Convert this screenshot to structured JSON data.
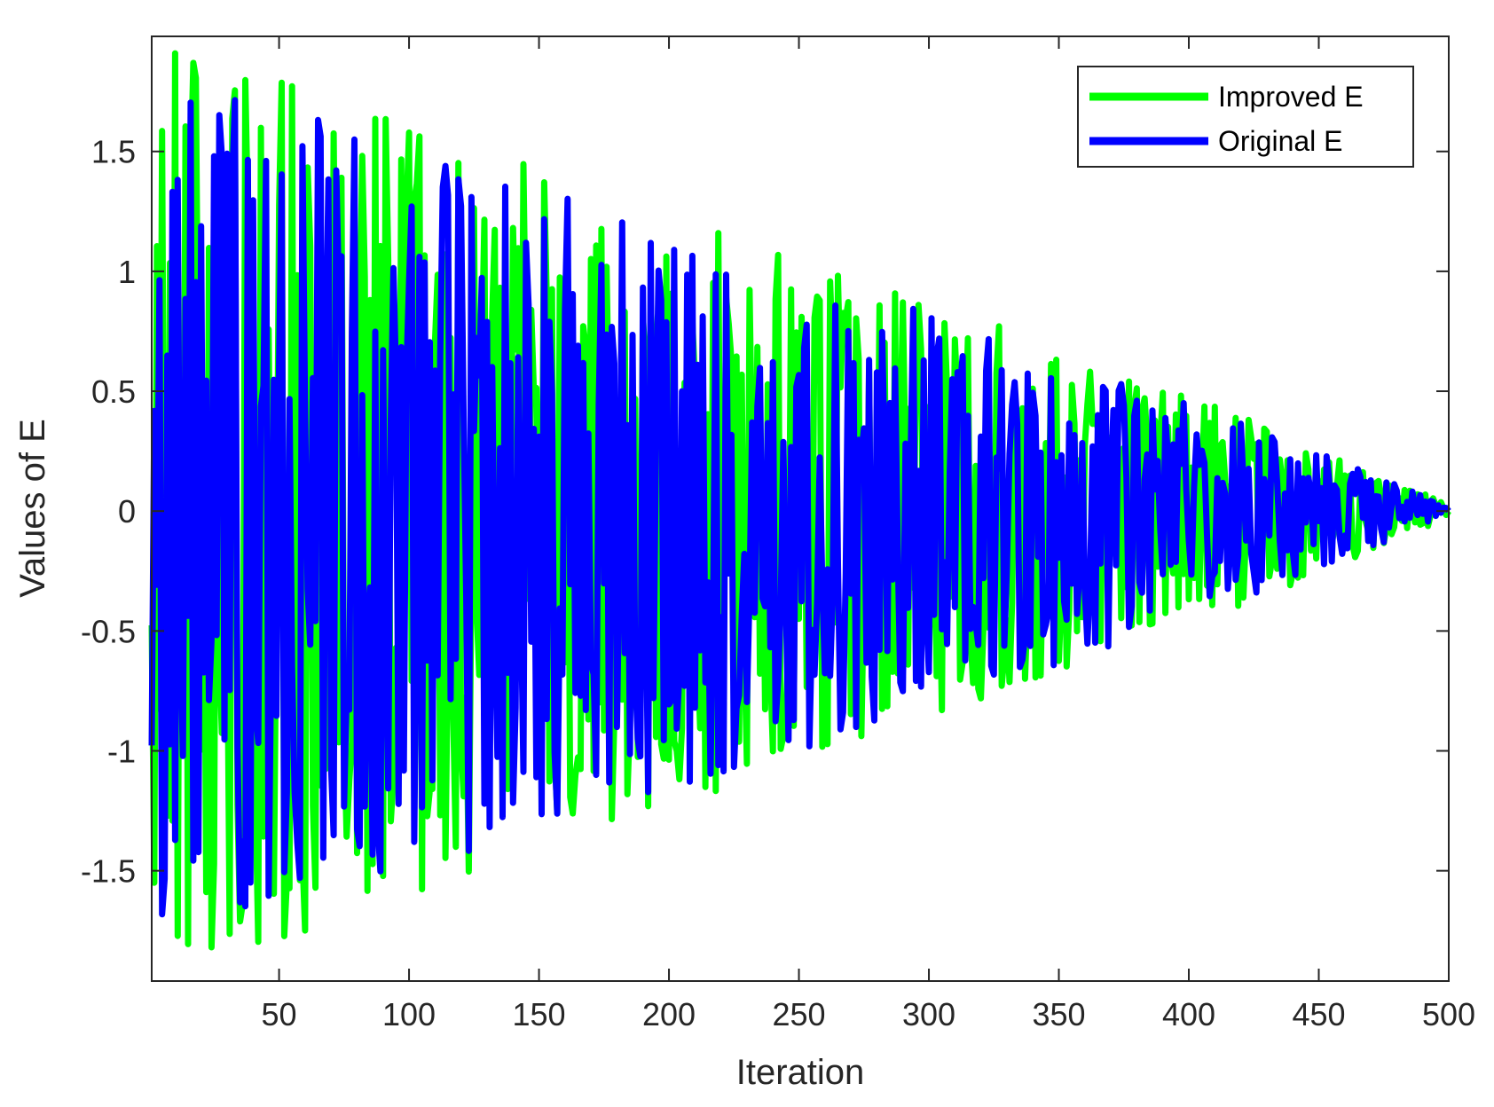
{
  "chart_data": {
    "type": "line",
    "title": "",
    "xlabel": "Iteration",
    "ylabel": "Values of E",
    "xlim": [
      1,
      500
    ],
    "ylim": [
      -1.96,
      1.98
    ],
    "xticks": [
      50,
      100,
      150,
      200,
      250,
      300,
      350,
      400,
      450,
      500
    ],
    "yticks": [
      -1.5,
      -1,
      -0.5,
      0,
      0.5,
      1,
      1.5
    ],
    "ytick_labels": [
      "-1.5",
      "-1",
      "-0.5",
      "0",
      "0.5",
      "1",
      "1.5"
    ],
    "grid": false,
    "box": true,
    "legend_position": "top-right",
    "series": [
      {
        "name": "Improved E",
        "color": "#00ff00",
        "description_points": 500,
        "amplitude_start": 1.95,
        "amplitude_end": 0.02,
        "seed": 7
      },
      {
        "name": "Original E",
        "color": "#0000ff",
        "description_points": 500,
        "amplitude_start": 1.85,
        "amplitude_end": 0.01,
        "seed": 13
      }
    ]
  }
}
